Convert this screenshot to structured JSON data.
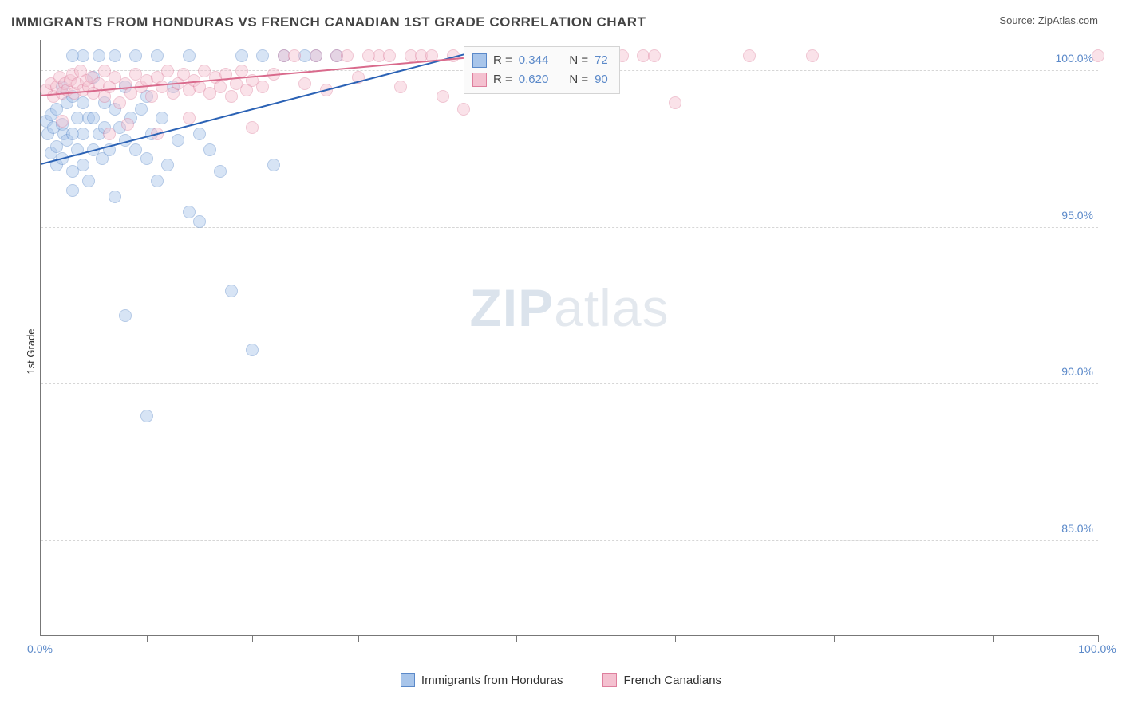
{
  "header": {
    "title": "IMMIGRANTS FROM HONDURAS VS FRENCH CANADIAN 1ST GRADE CORRELATION CHART",
    "source_label": "Source:",
    "source_value": "ZipAtlas.com"
  },
  "watermark": {
    "zip": "ZIP",
    "atlas": "atlas"
  },
  "chart": {
    "type": "scatter",
    "background_color": "#ffffff",
    "grid_color": "#d6d6d6",
    "axis_color": "#777777",
    "ylabel": "1st Grade",
    "label_fontsize": 13,
    "xlim": [
      0,
      100
    ],
    "ylim": [
      82,
      101
    ],
    "yticks": [
      {
        "v": 85,
        "label": "85.0%"
      },
      {
        "v": 90,
        "label": "90.0%"
      },
      {
        "v": 95,
        "label": "95.0%"
      },
      {
        "v": 100,
        "label": "100.0%"
      }
    ],
    "xticks": [
      0,
      10,
      20,
      30,
      45,
      60,
      75,
      90,
      100
    ],
    "xlabels": [
      {
        "v": 0,
        "label": "0.0%"
      },
      {
        "v": 100,
        "label": "100.0%"
      }
    ],
    "marker_radius": 8,
    "marker_opacity": 0.45,
    "series": [
      {
        "name": "Immigrants from Honduras",
        "color_fill": "#a8c5ea",
        "color_stroke": "#5b89c9",
        "trend": {
          "x1": 0,
          "y1": 97.0,
          "x2": 40,
          "y2": 100.5,
          "color": "#2b62b5"
        },
        "r_value": "0.344",
        "n_value": "72",
        "points": [
          [
            0.5,
            98.4
          ],
          [
            0.7,
            98.0
          ],
          [
            1.0,
            98.6
          ],
          [
            1.0,
            97.4
          ],
          [
            1.2,
            98.2
          ],
          [
            1.5,
            98.8
          ],
          [
            1.5,
            97.6
          ],
          [
            1.5,
            97.0
          ],
          [
            2.0,
            99.5
          ],
          [
            2.0,
            98.3
          ],
          [
            2.0,
            97.2
          ],
          [
            2.2,
            98.0
          ],
          [
            2.5,
            99.0
          ],
          [
            2.5,
            97.8
          ],
          [
            3.0,
            100.5
          ],
          [
            3.0,
            99.2
          ],
          [
            3.0,
            98.0
          ],
          [
            3.0,
            96.8
          ],
          [
            3.5,
            98.5
          ],
          [
            3.5,
            97.5
          ],
          [
            4.0,
            100.5
          ],
          [
            4.0,
            99.0
          ],
          [
            4.0,
            98.0
          ],
          [
            4.0,
            97.0
          ],
          [
            4.5,
            98.5
          ],
          [
            4.5,
            96.5
          ],
          [
            5.0,
            99.8
          ],
          [
            5.0,
            98.5
          ],
          [
            5.0,
            97.5
          ],
          [
            5.5,
            100.5
          ],
          [
            5.5,
            98.0
          ],
          [
            5.8,
            97.2
          ],
          [
            6.0,
            99.0
          ],
          [
            6.0,
            98.2
          ],
          [
            6.5,
            97.5
          ],
          [
            7.0,
            100.5
          ],
          [
            7.0,
            98.8
          ],
          [
            7.0,
            96.0
          ],
          [
            7.5,
            98.2
          ],
          [
            8.0,
            99.5
          ],
          [
            8.0,
            97.8
          ],
          [
            8.5,
            98.5
          ],
          [
            9.0,
            100.5
          ],
          [
            9.0,
            97.5
          ],
          [
            9.5,
            98.8
          ],
          [
            10.0,
            99.2
          ],
          [
            10.0,
            97.2
          ],
          [
            10.5,
            98.0
          ],
          [
            11.0,
            100.5
          ],
          [
            11.0,
            96.5
          ],
          [
            11.5,
            98.5
          ],
          [
            12.0,
            97.0
          ],
          [
            12.5,
            99.5
          ],
          [
            13.0,
            97.8
          ],
          [
            14.0,
            100.5
          ],
          [
            14.0,
            95.5
          ],
          [
            15.0,
            98.0
          ],
          [
            15.0,
            95.2
          ],
          [
            16.0,
            97.5
          ],
          [
            17.0,
            96.8
          ],
          [
            18.0,
            93.0
          ],
          [
            19.0,
            100.5
          ],
          [
            20.0,
            91.1
          ],
          [
            21.0,
            100.5
          ],
          [
            22.0,
            97.0
          ],
          [
            23.0,
            100.5
          ],
          [
            25.0,
            100.5
          ],
          [
            26.0,
            100.5
          ],
          [
            28.0,
            100.5
          ],
          [
            8.0,
            92.2
          ],
          [
            10.0,
            89.0
          ],
          [
            3.0,
            96.2
          ]
        ]
      },
      {
        "name": "French Canadians",
        "color_fill": "#f4c1d0",
        "color_stroke": "#de7f9d",
        "trend": {
          "x1": 0,
          "y1": 99.2,
          "x2": 40,
          "y2": 100.4,
          "color": "#d96a8c"
        },
        "r_value": "0.620",
        "n_value": "90",
        "points": [
          [
            0.5,
            99.4
          ],
          [
            1.0,
            99.6
          ],
          [
            1.2,
            99.2
          ],
          [
            1.5,
            99.5
          ],
          [
            1.8,
            99.8
          ],
          [
            2.0,
            99.3
          ],
          [
            2.3,
            99.6
          ],
          [
            2.5,
            99.4
          ],
          [
            2.8,
            99.7
          ],
          [
            3.0,
            99.9
          ],
          [
            3.2,
            99.3
          ],
          [
            3.5,
            99.6
          ],
          [
            3.8,
            100.0
          ],
          [
            4.0,
            99.4
          ],
          [
            4.3,
            99.7
          ],
          [
            4.5,
            99.5
          ],
          [
            4.8,
            99.8
          ],
          [
            5.0,
            99.3
          ],
          [
            5.5,
            99.6
          ],
          [
            6.0,
            100.0
          ],
          [
            6.0,
            99.2
          ],
          [
            6.5,
            99.5
          ],
          [
            7.0,
            99.8
          ],
          [
            7.5,
            99.0
          ],
          [
            8.0,
            99.6
          ],
          [
            8.5,
            99.3
          ],
          [
            9.0,
            99.9
          ],
          [
            9.5,
            99.5
          ],
          [
            10.0,
            99.7
          ],
          [
            10.5,
            99.2
          ],
          [
            11.0,
            99.8
          ],
          [
            11.5,
            99.5
          ],
          [
            12.0,
            100.0
          ],
          [
            12.5,
            99.3
          ],
          [
            13.0,
            99.6
          ],
          [
            13.5,
            99.9
          ],
          [
            14.0,
            99.4
          ],
          [
            14.5,
            99.7
          ],
          [
            15.0,
            99.5
          ],
          [
            15.5,
            100.0
          ],
          [
            16.0,
            99.3
          ],
          [
            16.5,
            99.8
          ],
          [
            17.0,
            99.5
          ],
          [
            17.5,
            99.9
          ],
          [
            18.0,
            99.2
          ],
          [
            18.5,
            99.6
          ],
          [
            19.0,
            100.0
          ],
          [
            19.5,
            99.4
          ],
          [
            20.0,
            99.7
          ],
          [
            21.0,
            99.5
          ],
          [
            22.0,
            99.9
          ],
          [
            23.0,
            100.5
          ],
          [
            24.0,
            100.5
          ],
          [
            25.0,
            99.6
          ],
          [
            26.0,
            100.5
          ],
          [
            27.0,
            99.4
          ],
          [
            28.0,
            100.5
          ],
          [
            29.0,
            100.5
          ],
          [
            30.0,
            99.8
          ],
          [
            31.0,
            100.5
          ],
          [
            32.0,
            100.5
          ],
          [
            33.0,
            100.5
          ],
          [
            34.0,
            99.5
          ],
          [
            35.0,
            100.5
          ],
          [
            36.0,
            100.5
          ],
          [
            37.0,
            100.5
          ],
          [
            38.0,
            99.2
          ],
          [
            39.0,
            100.5
          ],
          [
            40.0,
            98.8
          ],
          [
            41.0,
            100.5
          ],
          [
            42.0,
            100.5
          ],
          [
            44.0,
            100.5
          ],
          [
            46.0,
            100.5
          ],
          [
            48.0,
            100.5
          ],
          [
            50.0,
            100.5
          ],
          [
            52.0,
            100.5
          ],
          [
            54.0,
            100.5
          ],
          [
            55.0,
            100.5
          ],
          [
            57.0,
            100.5
          ],
          [
            58.0,
            100.5
          ],
          [
            60.0,
            99.0
          ],
          [
            67.0,
            100.5
          ],
          [
            73.0,
            100.5
          ],
          [
            100.0,
            100.5
          ],
          [
            6.5,
            98.0
          ],
          [
            8.2,
            98.3
          ],
          [
            11.0,
            98.0
          ],
          [
            14.0,
            98.5
          ],
          [
            20.0,
            98.2
          ],
          [
            2.0,
            98.4
          ]
        ]
      }
    ],
    "legend_box": {
      "r_label": "R =",
      "n_label": "N ="
    },
    "bottom_legend": {
      "series1": "Immigrants from Honduras",
      "series2": "French Canadians"
    }
  }
}
